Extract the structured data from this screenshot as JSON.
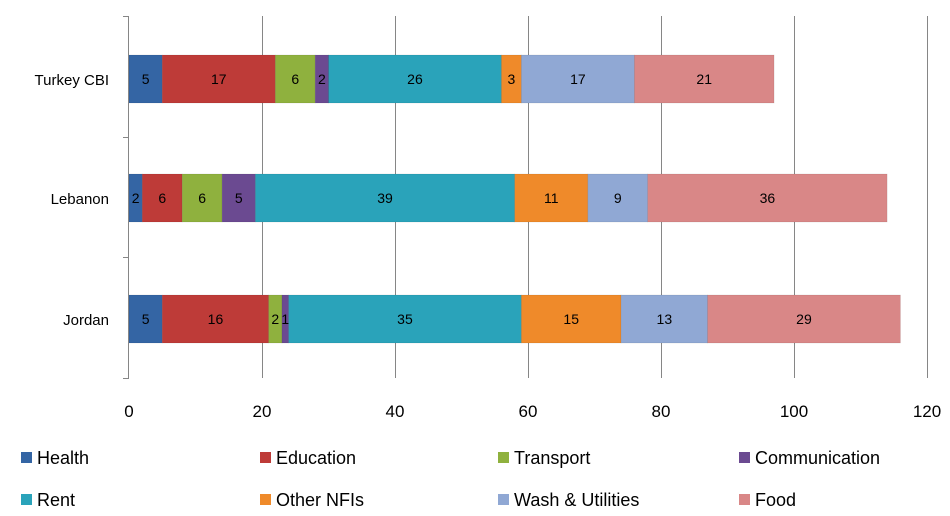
{
  "chart_data": {
    "type": "bar",
    "orientation": "horizontal",
    "stacked": true,
    "title": "",
    "xlabel": "",
    "ylabel": "",
    "xlim": [
      0,
      120
    ],
    "x_ticks": [
      0,
      20,
      40,
      60,
      80,
      100,
      120
    ],
    "grid": "vertical",
    "legend_position": "bottom",
    "categories": [
      "Turkey CBI",
      "Lebanon",
      "Jordan"
    ],
    "series": [
      {
        "name": "Health",
        "color": "#3465a4",
        "values": [
          5,
          2,
          5
        ]
      },
      {
        "name": "Education",
        "color": "#be3b38",
        "values": [
          17,
          6,
          16
        ]
      },
      {
        "name": "Transport",
        "color": "#8fb13e",
        "values": [
          6,
          6,
          2
        ]
      },
      {
        "name": "Communication",
        "color": "#6b4a91",
        "values": [
          2,
          5,
          1
        ]
      },
      {
        "name": "Rent",
        "color": "#2aa3ba",
        "values": [
          26,
          39,
          35
        ]
      },
      {
        "name": "Other NFIs",
        "color": "#ef8a2a",
        "values": [
          3,
          11,
          15
        ]
      },
      {
        "name": "Wash & Utilities",
        "color": "#90a8d4",
        "values": [
          17,
          9,
          13
        ]
      },
      {
        "name": "Food",
        "color": "#d98787",
        "values": [
          21,
          36,
          29
        ]
      }
    ]
  }
}
